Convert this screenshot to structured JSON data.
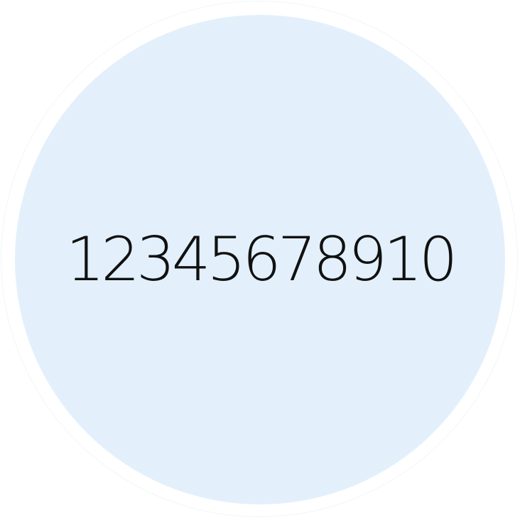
{
  "display": {
    "text": "12345678910"
  },
  "colors": {
    "background": "#ffffff",
    "disc": "#e3f0fb",
    "ring": "#f2f5f8",
    "text": "#111111"
  }
}
